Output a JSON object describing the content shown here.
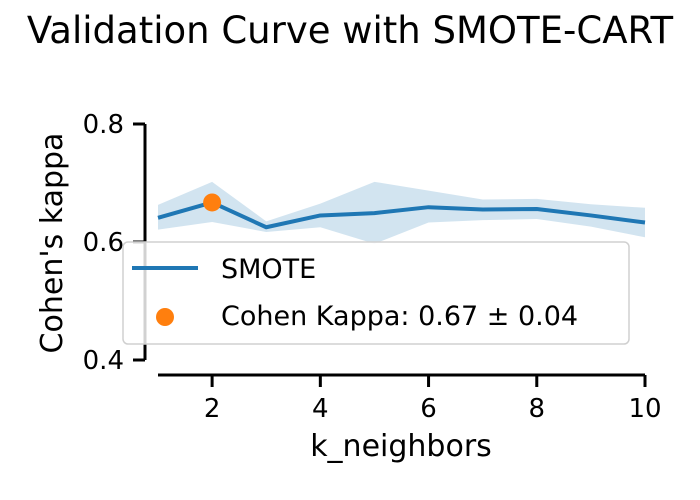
{
  "chart_data": {
    "type": "line",
    "title": "Validation Curve with SMOTE-CART",
    "xlabel": "k_neighbors",
    "ylabel": "Cohen's kappa",
    "xlim": [
      1,
      10
    ],
    "ylim": [
      0.4,
      0.8
    ],
    "x_ticks": [
      2,
      4,
      6,
      8,
      10
    ],
    "y_ticks": [
      0.4,
      0.6,
      0.8
    ],
    "x_tick_labels": [
      "2",
      "4",
      "6",
      "8",
      "10"
    ],
    "y_tick_labels": [
      "0.4",
      "0.6",
      "0.8"
    ],
    "grid": false,
    "legend_position": "lower-left",
    "series": [
      {
        "name": "SMOTE",
        "color": "#1f77b4",
        "band_color": "#1f77b4",
        "x": [
          1,
          2,
          3,
          4,
          5,
          6,
          7,
          8,
          9,
          10
        ],
        "values": [
          0.641,
          0.667,
          0.625,
          0.645,
          0.649,
          0.659,
          0.655,
          0.656,
          0.645,
          0.633
        ],
        "upper": [
          0.663,
          0.702,
          0.635,
          0.665,
          0.702,
          0.687,
          0.672,
          0.673,
          0.664,
          0.658
        ],
        "lower": [
          0.621,
          0.634,
          0.617,
          0.625,
          0.597,
          0.633,
          0.637,
          0.639,
          0.626,
          0.608
        ]
      }
    ],
    "highlight_point": {
      "name": "Cohen Kappa: 0.67 ± 0.04",
      "x": 2,
      "y": 0.667,
      "color": "#ff7f0e"
    }
  }
}
